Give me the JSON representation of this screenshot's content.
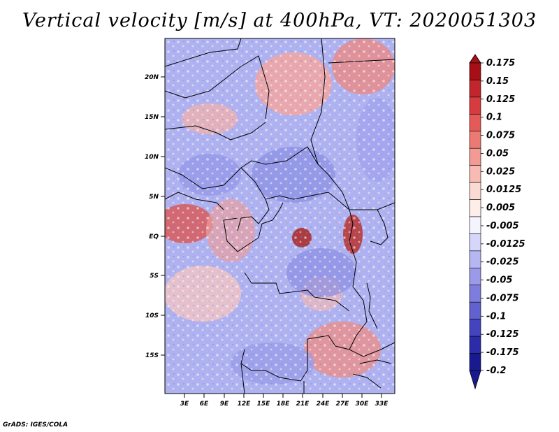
{
  "title": "Vertical velocity [m/s] at 400hPa, VT: 2020051303",
  "credit": "GrADS: IGES/COLA",
  "map": {
    "lat_labels": [
      "20N",
      "15N",
      "10N",
      "5N",
      "EQ",
      "5S",
      "10S",
      "15S"
    ],
    "lon_labels": [
      "3E",
      "6E",
      "9E",
      "12E",
      "15E",
      "18E",
      "21E",
      "24E",
      "27E",
      "30E",
      "33E"
    ]
  },
  "colorbar": {
    "labels": [
      "0.175",
      "0.15",
      "0.125",
      "0.1",
      "0.075",
      "0.05",
      "0.025",
      "0.0125",
      "0.005",
      "-0.005",
      "-0.0125",
      "-0.025",
      "-0.05",
      "-0.075",
      "-0.1",
      "-0.125",
      "-0.175",
      "-0.2"
    ],
    "colors": [
      "#a50f15",
      "#c0262b",
      "#d63b3f",
      "#e45a58",
      "#ec7a74",
      "#f19b94",
      "#f7bbb4",
      "#fbdad4",
      "#fdeeea",
      "#f4f4ff",
      "#d6d6fb",
      "#b6b6f3",
      "#9a9ae9",
      "#7d7ddd",
      "#6161cf",
      "#4444bf",
      "#2c2cab",
      "#1a1a90"
    ]
  }
}
